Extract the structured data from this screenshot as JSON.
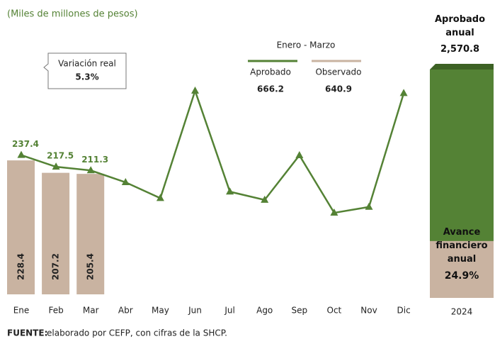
{
  "chart_data": {
    "type": "line-bar",
    "subtitle": "(Miles de millones de pesos)",
    "categories": [
      "Ene",
      "Feb",
      "Mar",
      "Abr",
      "May",
      "Jun",
      "Jul",
      "Ago",
      "Sep",
      "Oct",
      "Nov",
      "Dic"
    ],
    "series": [
      {
        "name": "Aprobado",
        "color": "#548235",
        "kind": "line",
        "values": [
          237.4,
          217.5,
          211.3,
          191,
          164,
          347,
          175,
          161,
          237,
          139,
          149,
          343
        ]
      },
      {
        "name": "Observado",
        "color": "#c9b3a1",
        "kind": "bar",
        "values": [
          228.4,
          207.2,
          205.4,
          null,
          null,
          null,
          null,
          null,
          null,
          null,
          null,
          null
        ]
      }
    ],
    "legend": {
      "title": "Enero - Marzo",
      "totals": [
        666.2,
        640.9
      ]
    },
    "annotation": {
      "label": "Variación real",
      "value": 5.3,
      "value_label": "5.3%"
    },
    "annual": {
      "category": "2024",
      "series": [
        {
          "name": "Aprobado anual",
          "color": "#548235",
          "values": [
            2570.8
          ],
          "value_labels": [
            "2,570.8"
          ]
        },
        {
          "name": "Avance financiero anual",
          "color": "#c9b3a1",
          "values": [
            24.9
          ],
          "value_labels": [
            "24.9%"
          ]
        }
      ]
    },
    "source": {
      "label": "FUENTE:",
      "text": " elaborado por CEFP, con cifras de la SHCP."
    }
  }
}
